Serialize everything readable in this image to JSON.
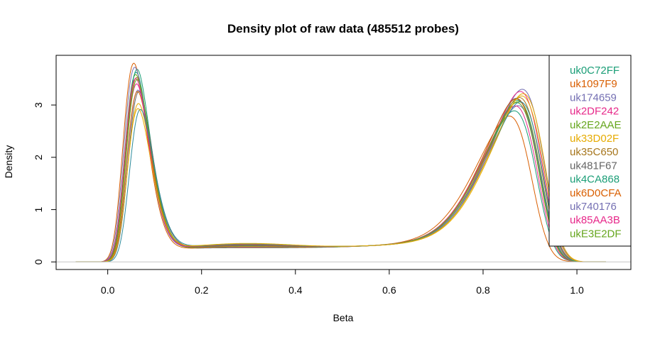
{
  "chart_data": {
    "type": "line",
    "title": "Density plot of raw data (485512 probes)",
    "xlabel": "Beta",
    "ylabel": "Density",
    "xlim": [
      -0.11,
      1.115
    ],
    "ylim": [
      -0.145,
      3.95
    ],
    "x_ticks": [
      0.0,
      0.2,
      0.4,
      0.6,
      0.8,
      1.0
    ],
    "x_tick_labels": [
      "0.0",
      "0.2",
      "0.4",
      "0.6",
      "0.8",
      "1.0"
    ],
    "y_ticks": [
      0,
      1,
      2,
      3
    ],
    "y_tick_labels": [
      "0",
      "1",
      "2",
      "3"
    ],
    "zero_line": true,
    "legend_position": "top-right",
    "series": [
      {
        "name": "uk0C72FF",
        "color": "#1B9E77",
        "peak1": {
          "x": 0.053,
          "y": 3.68
        },
        "peak2": {
          "x": 0.874,
          "y": 3.0
        }
      },
      {
        "name": "uk1097F9",
        "color": "#D95F02",
        "peak1": {
          "x": 0.046,
          "y": 3.8
        },
        "peak2": {
          "x": 0.858,
          "y": 2.65
        }
      },
      {
        "name": "uk174659",
        "color": "#7570B3",
        "peak1": {
          "x": 0.055,
          "y": 3.28
        },
        "peak2": {
          "x": 0.884,
          "y": 3.23
        }
      },
      {
        "name": "uk2DF242",
        "color": "#E7298A",
        "peak1": {
          "x": 0.052,
          "y": 3.4
        },
        "peak2": {
          "x": 0.88,
          "y": 3.18
        }
      },
      {
        "name": "uk2E2AAE",
        "color": "#66A61E",
        "peak1": {
          "x": 0.05,
          "y": 3.58
        },
        "peak2": {
          "x": 0.876,
          "y": 2.98
        }
      },
      {
        "name": "uk33D02F",
        "color": "#E6AB02",
        "peak1": {
          "x": 0.056,
          "y": 3.02
        },
        "peak2": {
          "x": 0.886,
          "y": 3.15
        }
      },
      {
        "name": "uk35C650",
        "color": "#A6761D",
        "peak1": {
          "x": 0.052,
          "y": 3.52
        },
        "peak2": {
          "x": 0.878,
          "y": 3.06
        }
      },
      {
        "name": "uk481F67",
        "color": "#666666",
        "peak1": {
          "x": 0.057,
          "y": 3.25
        },
        "peak2": {
          "x": 0.872,
          "y": 3.03
        }
      },
      {
        "name": "uk4CA868",
        "color": "#1B9E77",
        "peak1": {
          "x": 0.051,
          "y": 3.62
        },
        "peak2": {
          "x": 0.868,
          "y": 2.78
        }
      },
      {
        "name": "uk6D0CFA",
        "color": "#D95F02",
        "peak1": {
          "x": 0.054,
          "y": 3.25
        },
        "peak2": {
          "x": 0.872,
          "y": 3.02
        }
      },
      {
        "name": "uk740176",
        "color": "#7570B3",
        "peak1": {
          "x": 0.048,
          "y": 3.72
        },
        "peak2": {
          "x": 0.876,
          "y": 2.9
        }
      },
      {
        "name": "uk85AA3B",
        "color": "#E7298A",
        "peak1": {
          "x": 0.05,
          "y": 3.5
        },
        "peak2": {
          "x": 0.87,
          "y": 2.88
        }
      },
      {
        "name": "ukE3E2DF",
        "color": "#66A61E",
        "peak1": {
          "x": 0.053,
          "y": 3.48
        },
        "peak2": {
          "x": 0.873,
          "y": 2.95
        }
      },
      {
        "name": "",
        "color": "#2E8B9A",
        "peak1": {
          "x": 0.06,
          "y": 2.9
        },
        "peak2": {
          "x": 0.88,
          "y": 2.98
        }
      },
      {
        "name": "",
        "color": "#E6AB02",
        "peak1": {
          "x": 0.055,
          "y": 2.92
        },
        "peak2": {
          "x": 0.883,
          "y": 3.1
        }
      }
    ]
  }
}
